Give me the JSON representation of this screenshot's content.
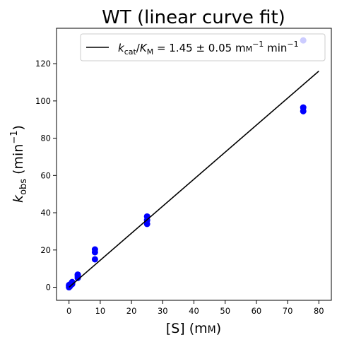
{
  "chart_data": {
    "type": "scatter",
    "title": "WT (linear curve fit)",
    "xlabel": {
      "main": "[S] (m",
      "small_caps": "M",
      "close": ")"
    },
    "ylabel": {
      "k": "k",
      "sub": "obs",
      "rest": " (min",
      "sup": "−1",
      "close": ")"
    },
    "xlim": [
      -4,
      84
    ],
    "ylim": [
      -7,
      139
    ],
    "x_ticks": [
      0,
      10,
      20,
      30,
      40,
      50,
      60,
      70,
      80
    ],
    "y_ticks": [
      0,
      20,
      40,
      60,
      80,
      100,
      120
    ],
    "grid": false,
    "legend_placement": "top-right",
    "series": [
      {
        "kind": "points",
        "color": "#0000ff",
        "points": [
          {
            "x": 0,
            "y": 0
          },
          {
            "x": 0,
            "y": 0.8
          },
          {
            "x": 0,
            "y": 1.2
          },
          {
            "x": 0.3,
            "y": 0.5
          },
          {
            "x": 0.3,
            "y": 1.0
          },
          {
            "x": 0.3,
            "y": 1.5
          },
          {
            "x": 1,
            "y": 1.7
          },
          {
            "x": 1,
            "y": 2.3
          },
          {
            "x": 1,
            "y": 2.8
          },
          {
            "x": 2.8,
            "y": 5.0
          },
          {
            "x": 2.8,
            "y": 6.0
          },
          {
            "x": 2.8,
            "y": 6.8
          },
          {
            "x": 8.3,
            "y": 15.0
          },
          {
            "x": 8.3,
            "y": 18.8
          },
          {
            "x": 8.3,
            "y": 20.3
          },
          {
            "x": 25,
            "y": 34.0
          },
          {
            "x": 25,
            "y": 36.0
          },
          {
            "x": 25,
            "y": 38.0
          },
          {
            "x": 75,
            "y": 94.5
          },
          {
            "x": 75,
            "y": 96.5
          },
          {
            "x": 75,
            "y": 132.5
          }
        ]
      },
      {
        "kind": "line",
        "color": "#000000",
        "legend": {
          "k": "k",
          "k_sub": "cat",
          "slash": "/",
          "K": "K",
          "K_sub": "M",
          "value": " = 1.45 ± 0.05 m",
          "unit_sc": "M",
          "sup1": "−1",
          "min": " min",
          "sup2": "−1"
        },
        "x": [
          0,
          80
        ],
        "y": [
          0,
          116
        ]
      }
    ]
  }
}
